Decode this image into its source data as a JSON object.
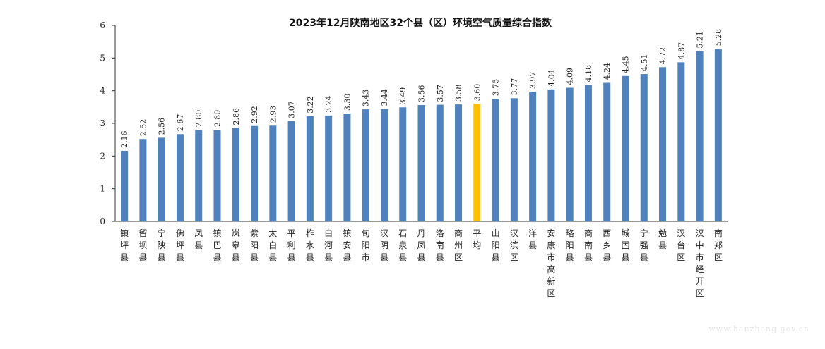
{
  "chart_data": {
    "type": "bar",
    "title": "2023年12月陕南地区32个县（区）环境空气质量综合指数",
    "xlabel": "",
    "ylabel": "",
    "ylim": [
      0,
      6
    ],
    "yticks": [
      0,
      1,
      2,
      3,
      4,
      5,
      6
    ],
    "grid": false,
    "legend": "none",
    "colors": {
      "bar": "#4f81bd",
      "highlight": "#ffc000"
    },
    "highlight_category": "平均",
    "categories": [
      "镇坪县",
      "留坝县",
      "宁陕县",
      "佛坪县",
      "凤县",
      "镇巴县",
      "岚皋县",
      "紫阳县",
      "太白县",
      "平利县",
      "柞水县",
      "白河县",
      "镇安县",
      "旬阳市",
      "汉阴县",
      "石泉县",
      "丹凤县",
      "洛南县",
      "商州区",
      "平均",
      "山阳县",
      "汉滨区",
      "洋县",
      "安康市高新区",
      "略阳县",
      "商南县",
      "西乡县",
      "城固县",
      "宁强县",
      "勉县",
      "汉台区",
      "汉中市经开区",
      "南郑区"
    ],
    "value_labels": [
      "2.16",
      "2.52",
      "2.56",
      "2.67",
      "2.80",
      "2.80",
      "2.86",
      "2.92",
      "2.93",
      "3.07",
      "3.22",
      "3.24",
      "3.30",
      "3.43",
      "3.44",
      "3.49",
      "3.56",
      "3.57",
      "3.58",
      "3.60",
      "3.75",
      "3.77",
      "3.97",
      "4.04",
      "4.09",
      "4.18",
      "4.24",
      "4.45",
      "4.51",
      "4.72",
      "4.87",
      "5.21",
      "5.28"
    ],
    "values": [
      2.16,
      2.52,
      2.56,
      2.67,
      2.8,
      2.8,
      2.86,
      2.92,
      2.93,
      3.07,
      3.22,
      3.24,
      3.3,
      3.43,
      3.44,
      3.49,
      3.56,
      3.57,
      3.58,
      3.6,
      3.75,
      3.77,
      3.97,
      4.04,
      4.09,
      4.18,
      4.24,
      4.45,
      4.51,
      4.72,
      4.87,
      5.21,
      5.28
    ]
  },
  "watermark": "www.hanzhong.gov.cn"
}
